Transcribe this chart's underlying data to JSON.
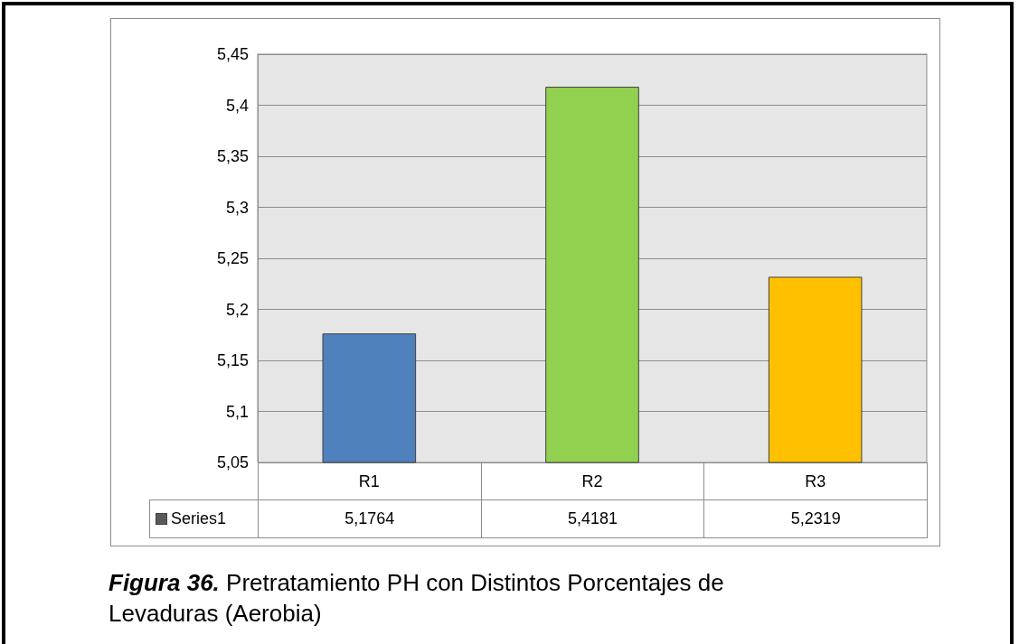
{
  "chart_data": {
    "type": "bar",
    "categories": [
      "R1",
      "R2",
      "R3"
    ],
    "series": [
      {
        "name": "Series1",
        "color": "#595959",
        "colors": [
          "#4f81bd",
          "#92d050",
          "#ffc000"
        ],
        "values": [
          5.1764,
          5.4181,
          5.2319
        ],
        "value_labels": [
          "5,1764",
          "5,4181",
          "5,2319"
        ]
      }
    ],
    "ylim": [
      5.05,
      5.45
    ],
    "yticks": [
      {
        "value": 5.05,
        "label": "5,05"
      },
      {
        "value": 5.1,
        "label": "5,1"
      },
      {
        "value": 5.15,
        "label": "5,15"
      },
      {
        "value": 5.2,
        "label": "5,2"
      },
      {
        "value": 5.25,
        "label": "5,25"
      },
      {
        "value": 5.3,
        "label": "5,3"
      },
      {
        "value": 5.35,
        "label": "5,35"
      },
      {
        "value": 5.4,
        "label": "5,4"
      },
      {
        "value": 5.45,
        "label": "5,45"
      }
    ],
    "grid": "y",
    "legend": "bottom",
    "annotations": [
      "Figura 36. Pretratamiento PH con Distintos Porcentajes de Levaduras (Aerobia)"
    ]
  }
}
